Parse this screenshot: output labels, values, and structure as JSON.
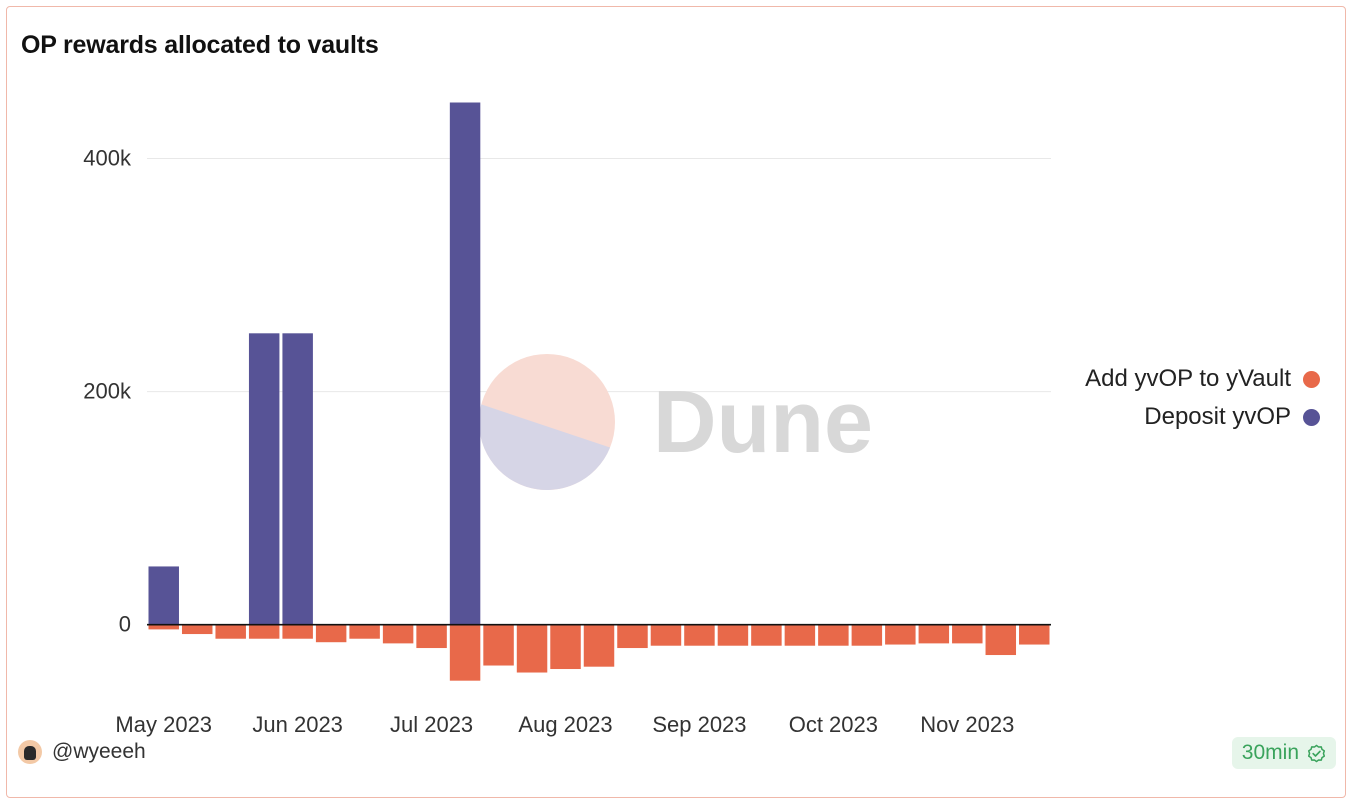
{
  "title": "OP rewards allocated to vaults",
  "author": "@wyeeeh",
  "refresh_badge": "30min",
  "watermark": "Dune",
  "colors": {
    "add": "#e8694a",
    "deposit": "#575396",
    "grid": "#e8e8e8",
    "axis": "#111111"
  },
  "chart_data": {
    "type": "bar",
    "stacked": true,
    "title": "OP rewards allocated to vaults",
    "xlabel": "",
    "ylabel": "",
    "ylim": [
      -62000,
      445000
    ],
    "yticks": [
      0,
      200000,
      400000
    ],
    "ytick_labels": [
      "0",
      "200k",
      "400k"
    ],
    "grid": true,
    "legend_position": "right",
    "x_ticks": [
      {
        "index": 0.5,
        "label": "May 2023"
      },
      {
        "index": 4.5,
        "label": "Jun 2023"
      },
      {
        "index": 8.5,
        "label": "Jul 2023"
      },
      {
        "index": 12.5,
        "label": "Aug 2023"
      },
      {
        "index": 16.5,
        "label": "Sep 2023"
      },
      {
        "index": 20.5,
        "label": "Oct 2023"
      },
      {
        "index": 24.5,
        "label": "Nov 2023"
      }
    ],
    "categories": [
      "2023-05-01",
      "2023-05-08",
      "2023-05-15",
      "2023-05-22",
      "2023-05-29",
      "2023-06-05",
      "2023-06-12",
      "2023-06-19",
      "2023-06-26",
      "2023-07-03",
      "2023-07-10",
      "2023-07-17",
      "2023-07-24",
      "2023-07-31",
      "2023-08-07",
      "2023-08-14",
      "2023-08-21",
      "2023-08-28",
      "2023-09-04",
      "2023-09-11",
      "2023-09-18",
      "2023-09-25",
      "2023-10-02",
      "2023-10-09",
      "2023-10-16",
      "2023-10-23",
      "2023-10-30"
    ],
    "series": [
      {
        "name": "Add yvOP to yVault",
        "values": [
          -4000,
          -8000,
          -12000,
          -12000,
          -12000,
          -15000,
          -12000,
          -16000,
          -20000,
          -48000,
          -35000,
          -41000,
          -38000,
          -36000,
          -20000,
          -18000,
          -18000,
          -18000,
          -18000,
          -18000,
          -18000,
          -18000,
          -17000,
          -16000,
          -16000,
          -26000,
          -17000
        ]
      },
      {
        "name": "Deposit yvOP",
        "values": [
          50000,
          0,
          0,
          250000,
          250000,
          0,
          0,
          0,
          0,
          448000,
          0,
          0,
          0,
          0,
          0,
          0,
          0,
          0,
          0,
          0,
          0,
          0,
          0,
          0,
          0,
          0,
          0
        ]
      }
    ]
  }
}
